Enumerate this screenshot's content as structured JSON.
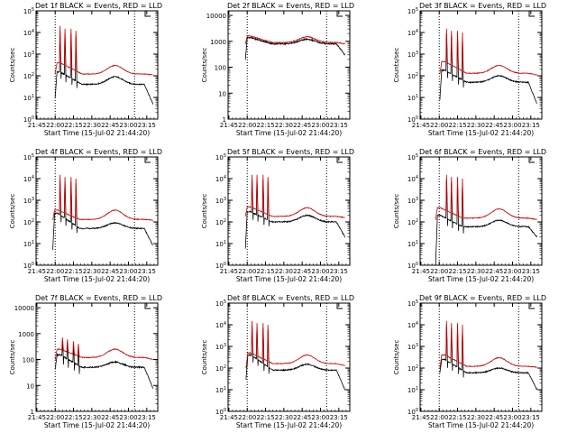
{
  "figure": {
    "x_tick_labels": [
      "21:45",
      "22:00",
      "22:15",
      "22:30",
      "22:45",
      "23:00",
      "23:15"
    ],
    "x_label": "Start Time (15-Jul-02 21:44:20)",
    "y_label": "Counts/sec",
    "series_colors": {
      "events": "#000000",
      "lld": "#cc0000"
    }
  },
  "chart_data": [
    {
      "type": "line",
      "title": "Det 1f BLACK = Events, RED = LLD",
      "xlabel": "Start Time (15-Jul-02 21:44:20)",
      "ylabel": "Counts/sec",
      "xlim": [
        "21:44:20",
        "23:24:00"
      ],
      "ylim": [
        1,
        100000
      ],
      "yscale": "log",
      "y_tick_labels": [
        "10^0",
        "10^1",
        "10^2",
        "10^3",
        "10^4",
        "10^5"
      ],
      "vlines": [
        "22:00:00",
        "23:05:00"
      ],
      "events": {
        "gap_end": "22:00:00",
        "start": 10,
        "early_level": 150,
        "flat_level": 40,
        "hump_peak": 90,
        "end_value": 5
      },
      "lld": {
        "start": 120,
        "early_level": 400,
        "flat_level": 120,
        "hump_peak": 300,
        "end_value": 110
      },
      "spikes": {
        "times": [
          "22:04:00",
          "22:08:00",
          "22:13:00",
          "22:17:00"
        ],
        "peaks": [
          20000,
          15000,
          15000,
          12000
        ]
      }
    },
    {
      "type": "line",
      "title": "Det 2f BLACK = Events, RED = LLD",
      "xlabel": "Start Time (15-Jul-02 21:44:20)",
      "ylabel": "Counts/sec",
      "xlim": [
        "21:44:20",
        "23:24:00"
      ],
      "ylim": [
        1,
        15000
      ],
      "yscale": "log",
      "y_tick_labels": [
        "1",
        "10",
        "100",
        "1000",
        "10000"
      ],
      "vlines": [
        "22:00:00",
        "23:05:00"
      ],
      "events": {
        "gap_end": "21:58:30",
        "start": 200,
        "early_level": 1400,
        "flat_level": 800,
        "hump_peak": 1200,
        "end_value": 300
      },
      "lld": {
        "start": 800,
        "early_level": 1600,
        "flat_level": 900,
        "hump_peak": 1500,
        "end_value": 800
      },
      "spikes": {
        "times": [],
        "peaks": []
      }
    },
    {
      "type": "line",
      "title": "Det 3f BLACK = Events, RED = LLD",
      "xlabel": "Start Time (15-Jul-02 21:44:20)",
      "ylabel": "Counts/sec",
      "xlim": [
        "21:44:20",
        "23:24:00"
      ],
      "ylim": [
        1,
        100000
      ],
      "yscale": "log",
      "y_tick_labels": [
        "10^0",
        "10^1",
        "10^2",
        "10^3",
        "10^4",
        "10^5"
      ],
      "vlines": [
        "22:00:00",
        "23:05:00"
      ],
      "events": {
        "gap_end": "22:00:30",
        "start": 8,
        "early_level": 180,
        "flat_level": 50,
        "hump_peak": 100,
        "end_value": 5
      },
      "lld": {
        "start": 120,
        "early_level": 450,
        "flat_level": 130,
        "hump_peak": 300,
        "end_value": 110
      },
      "spikes": {
        "times": [
          "22:06:00",
          "22:10:00",
          "22:15:00",
          "22:19:00"
        ],
        "peaks": [
          15000,
          12000,
          12000,
          10000
        ]
      }
    },
    {
      "type": "line",
      "title": "Det 4f BLACK = Events, RED = LLD",
      "xlabel": "Start Time (15-Jul-02 21:44:20)",
      "ylabel": "Counts/sec",
      "xlim": [
        "21:44:20",
        "23:24:00"
      ],
      "ylim": [
        1,
        100000
      ],
      "yscale": "log",
      "y_tick_labels": [
        "10^0",
        "10^1",
        "10^2",
        "10^3",
        "10^4",
        "10^5"
      ],
      "vlines": [
        "22:00:00",
        "23:05:00"
      ],
      "events": {
        "gap_end": "21:58:00",
        "start": 5,
        "early_level": 250,
        "flat_level": 50,
        "hump_peak": 90,
        "end_value": 8
      },
      "lld": {
        "start": 120,
        "early_level": 350,
        "flat_level": 130,
        "hump_peak": 350,
        "end_value": 120
      },
      "spikes": {
        "times": [
          "22:04:00",
          "22:08:00",
          "22:13:00",
          "22:17:00"
        ],
        "peaks": [
          15000,
          12000,
          12000,
          10000
        ]
      }
    },
    {
      "type": "line",
      "title": "Det 5f BLACK = Events, RED = LLD",
      "xlabel": "Start Time (15-Jul-02 21:44:20)",
      "ylabel": "Counts/sec",
      "xlim": [
        "21:44:20",
        "23:24:00"
      ],
      "ylim": [
        1,
        100000
      ],
      "yscale": "log",
      "y_tick_labels": [
        "10^0",
        "10^1",
        "10^2",
        "10^3",
        "10^4",
        "10^5"
      ],
      "vlines": [
        "22:00:00",
        "23:05:00"
      ],
      "events": {
        "gap_end": "21:58:30",
        "start": 6,
        "early_level": 300,
        "flat_level": 100,
        "hump_peak": 200,
        "end_value": 20
      },
      "lld": {
        "start": 180,
        "early_level": 500,
        "flat_level": 180,
        "hump_peak": 450,
        "end_value": 160
      },
      "spikes": {
        "times": [
          "22:04:00",
          "22:08:00",
          "22:13:00",
          "22:17:00"
        ],
        "peaks": [
          15000,
          15000,
          15000,
          12000
        ]
      }
    },
    {
      "type": "line",
      "title": "Det 6f BLACK = Events, RED = LLD",
      "xlabel": "Start Time (15-Jul-02 21:44:20)",
      "ylabel": "Counts/sec",
      "xlim": [
        "21:44:20",
        "23:24:00"
      ],
      "ylim": [
        1,
        100000
      ],
      "yscale": "log",
      "y_tick_labels": [
        "10^0",
        "10^1",
        "10^2",
        "10^3",
        "10^4",
        "10^5"
      ],
      "vlines": [
        "22:00:00",
        "23:05:00"
      ],
      "events": {
        "gap_end": "21:57:00",
        "start": 1,
        "early_level": 200,
        "flat_level": 60,
        "hump_peak": 120,
        "end_value": 20
      },
      "lld": {
        "start": 120,
        "early_level": 450,
        "flat_level": 150,
        "hump_peak": 400,
        "end_value": 130
      },
      "spikes": {
        "times": [
          "22:06:00",
          "22:10:00",
          "22:15:00",
          "22:19:00"
        ],
        "peaks": [
          15000,
          12000,
          12000,
          10000
        ]
      }
    },
    {
      "type": "line",
      "title": "Det 7f BLACK = Events, RED = LLD",
      "xlabel": "Start Time (15-Jul-02 21:44:20)",
      "ylabel": "Counts/sec",
      "xlim": [
        "21:44:20",
        "23:24:00"
      ],
      "ylim": [
        1,
        15000
      ],
      "yscale": "log",
      "y_tick_labels": [
        "1",
        "10",
        "100",
        "1000",
        "10000"
      ],
      "vlines": [
        "22:00:00",
        "23:05:00"
      ],
      "events": {
        "gap_end": "22:00:00",
        "start": 40,
        "early_level": 150,
        "flat_level": 50,
        "hump_peak": 80,
        "end_value": 8
      },
      "lld": {
        "start": 100,
        "early_level": 250,
        "flat_level": 120,
        "hump_peak": 250,
        "end_value": 100
      },
      "spikes": {
        "times": [
          "22:06:00",
          "22:10:00",
          "22:15:00",
          "22:19:00"
        ],
        "peaks": [
          700,
          600,
          500,
          400
        ]
      }
    },
    {
      "type": "line",
      "title": "Det 8f BLACK = Events, RED = LLD",
      "xlabel": "Start Time (15-Jul-02 21:44:20)",
      "ylabel": "Counts/sec",
      "xlim": [
        "21:44:20",
        "23:24:00"
      ],
      "ylim": [
        1,
        100000
      ],
      "yscale": "log",
      "y_tick_labels": [
        "10^0",
        "10^1",
        "10^2",
        "10^3",
        "10^4",
        "10^5"
      ],
      "vlines": [
        "22:00:00",
        "23:05:00"
      ],
      "events": {
        "gap_end": "21:59:00",
        "start": 30,
        "early_level": 400,
        "flat_level": 80,
        "hump_peak": 150,
        "end_value": 10
      },
      "lld": {
        "start": 100,
        "early_level": 500,
        "flat_level": 160,
        "hump_peak": 400,
        "end_value": 130
      },
      "spikes": {
        "times": [
          "22:04:00",
          "22:08:00",
          "22:13:00",
          "22:17:00"
        ],
        "peaks": [
          15000,
          12000,
          12000,
          10000
        ]
      }
    },
    {
      "type": "line",
      "title": "Det 9f BLACK = Events, RED = LLD",
      "xlabel": "Start Time (15-Jul-02 21:44:20)",
      "ylabel": "Counts/sec",
      "xlim": [
        "21:44:20",
        "23:24:00"
      ],
      "ylim": [
        1,
        100000
      ],
      "yscale": "log",
      "y_tick_labels": [
        "10^0",
        "10^1",
        "10^2",
        "10^3",
        "10^4",
        "10^5"
      ],
      "vlines": [
        "22:00:00",
        "23:05:00"
      ],
      "events": {
        "gap_end": "22:00:30",
        "start": 60,
        "early_level": 250,
        "flat_level": 60,
        "hump_peak": 100,
        "end_value": 10
      },
      "lld": {
        "start": 100,
        "early_level": 400,
        "flat_level": 120,
        "hump_peak": 300,
        "end_value": 110
      },
      "spikes": {
        "times": [
          "22:06:00",
          "22:10:00",
          "22:15:00",
          "22:19:00"
        ],
        "peaks": [
          15000,
          12000,
          12000,
          10000
        ]
      }
    }
  ]
}
